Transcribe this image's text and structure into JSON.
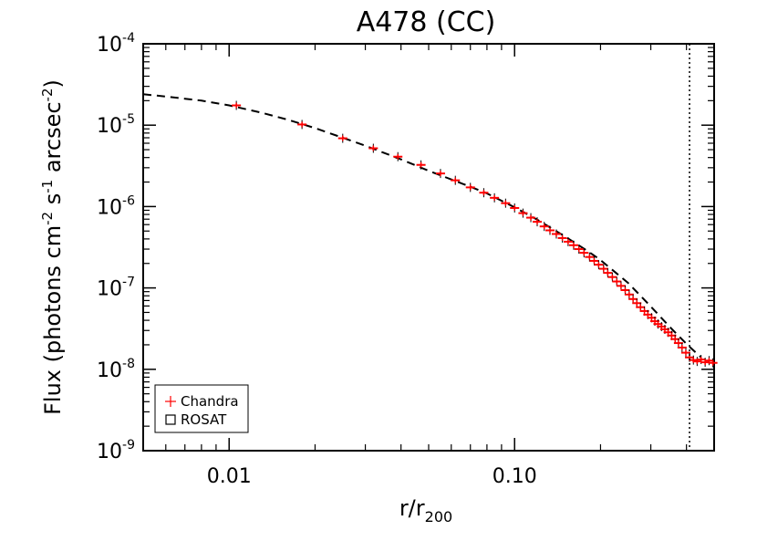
{
  "chart_data": {
    "type": "scatter",
    "title": "A478 (CC)",
    "xlabel": "r/r",
    "xlabel_sub": "200",
    "ylabel_parts": [
      "Flux (photons cm",
      "-2",
      " s",
      "-1",
      " arcsec",
      "-2",
      ")"
    ],
    "x_scale": "log",
    "y_scale": "log",
    "xlim": [
      0.005,
      0.5
    ],
    "ylim": [
      1e-09,
      0.0001
    ],
    "x_ticks": [
      {
        "value": 0.01,
        "label": "0.01"
      },
      {
        "value": 0.1,
        "label": "0.10"
      }
    ],
    "y_ticks": [
      {
        "value": 0.0001,
        "base": "10",
        "exp": "-4"
      },
      {
        "value": 1e-05,
        "base": "10",
        "exp": "-5"
      },
      {
        "value": 1e-06,
        "base": "10",
        "exp": "-6"
      },
      {
        "value": 1e-07,
        "base": "10",
        "exp": "-7"
      },
      {
        "value": 1e-08,
        "base": "10",
        "exp": "-8"
      },
      {
        "value": 1e-09,
        "base": "10",
        "exp": "-9"
      }
    ],
    "vertical_line": {
      "x": 0.41,
      "style": "dotted"
    },
    "legend": {
      "position": "bottom-left",
      "entries": [
        {
          "label": "Chandra",
          "symbol": "plus",
          "color": "#ff0000"
        },
        {
          "label": "ROSAT",
          "symbol": "square",
          "color": "#000000"
        }
      ]
    },
    "series": [
      {
        "name": "Chandra",
        "symbol": "plus",
        "color": "#ff0000",
        "x": [
          0.0106,
          0.018,
          0.025,
          0.032,
          0.039,
          0.047,
          0.055,
          0.062,
          0.07,
          0.078,
          0.085,
          0.093,
          0.1,
          0.107,
          0.114,
          0.12,
          0.127,
          0.133,
          0.14,
          0.147,
          0.154,
          0.161,
          0.168,
          0.175,
          0.183,
          0.19,
          0.197,
          0.205,
          0.212,
          0.22,
          0.228,
          0.236,
          0.244,
          0.252,
          0.26,
          0.268,
          0.276,
          0.285,
          0.293,
          0.302,
          0.31,
          0.318,
          0.327,
          0.336,
          0.345,
          0.355,
          0.365,
          0.375,
          0.386,
          0.398,
          0.41,
          0.423,
          0.436,
          0.45,
          0.465,
          0.48,
          0.495
        ],
        "y": [
          1.75e-05,
          1.02e-05,
          6.9e-06,
          5.2e-06,
          4.1e-06,
          3.25e-06,
          2.55e-06,
          2.1e-06,
          1.72e-06,
          1.48e-06,
          1.28e-06,
          1.1e-06,
          9.6e-07,
          8.3e-07,
          7.3e-07,
          6.5e-07,
          5.7e-07,
          5.1e-07,
          4.6e-07,
          4.1e-07,
          3.7e-07,
          3.35e-07,
          3e-07,
          2.7e-07,
          2.4e-07,
          2.15e-07,
          1.93e-07,
          1.72e-07,
          1.53e-07,
          1.36e-07,
          1.2e-07,
          1.06e-07,
          9.4e-08,
          8.3e-08,
          7.3e-08,
          6.5e-08,
          5.8e-08,
          5.2e-08,
          4.7e-08,
          4.3e-08,
          3.9e-08,
          3.6e-08,
          3.35e-08,
          3.1e-08,
          2.85e-08,
          2.6e-08,
          2.35e-08,
          2.1e-08,
          1.85e-08,
          1.6e-08,
          1.4e-08,
          1.3e-08,
          1.25e-08,
          1.32e-08,
          1.22e-08,
          1.28e-08,
          1.2e-08
        ]
      },
      {
        "name": "Model",
        "style": "dashed",
        "color": "#000000",
        "x": [
          0.005,
          0.006,
          0.008,
          0.01,
          0.013,
          0.016,
          0.02,
          0.025,
          0.03,
          0.04,
          0.05,
          0.06,
          0.07,
          0.08,
          0.1,
          0.12,
          0.15,
          0.18,
          0.2,
          0.25,
          0.3,
          0.35,
          0.4,
          0.45
        ],
        "y": [
          2.4e-05,
          2.25e-05,
          2e-05,
          1.75e-05,
          1.42e-05,
          1.17e-05,
          9.2e-06,
          7e-06,
          5.6e-06,
          3.8e-06,
          2.75e-06,
          2.15e-06,
          1.75e-06,
          1.45e-06,
          9.8e-07,
          6.9e-07,
          4.3e-07,
          2.85e-07,
          2.2e-07,
          1.15e-07,
          5.9e-08,
          3.3e-08,
          2.05e-08,
          1.4e-08
        ]
      }
    ]
  }
}
